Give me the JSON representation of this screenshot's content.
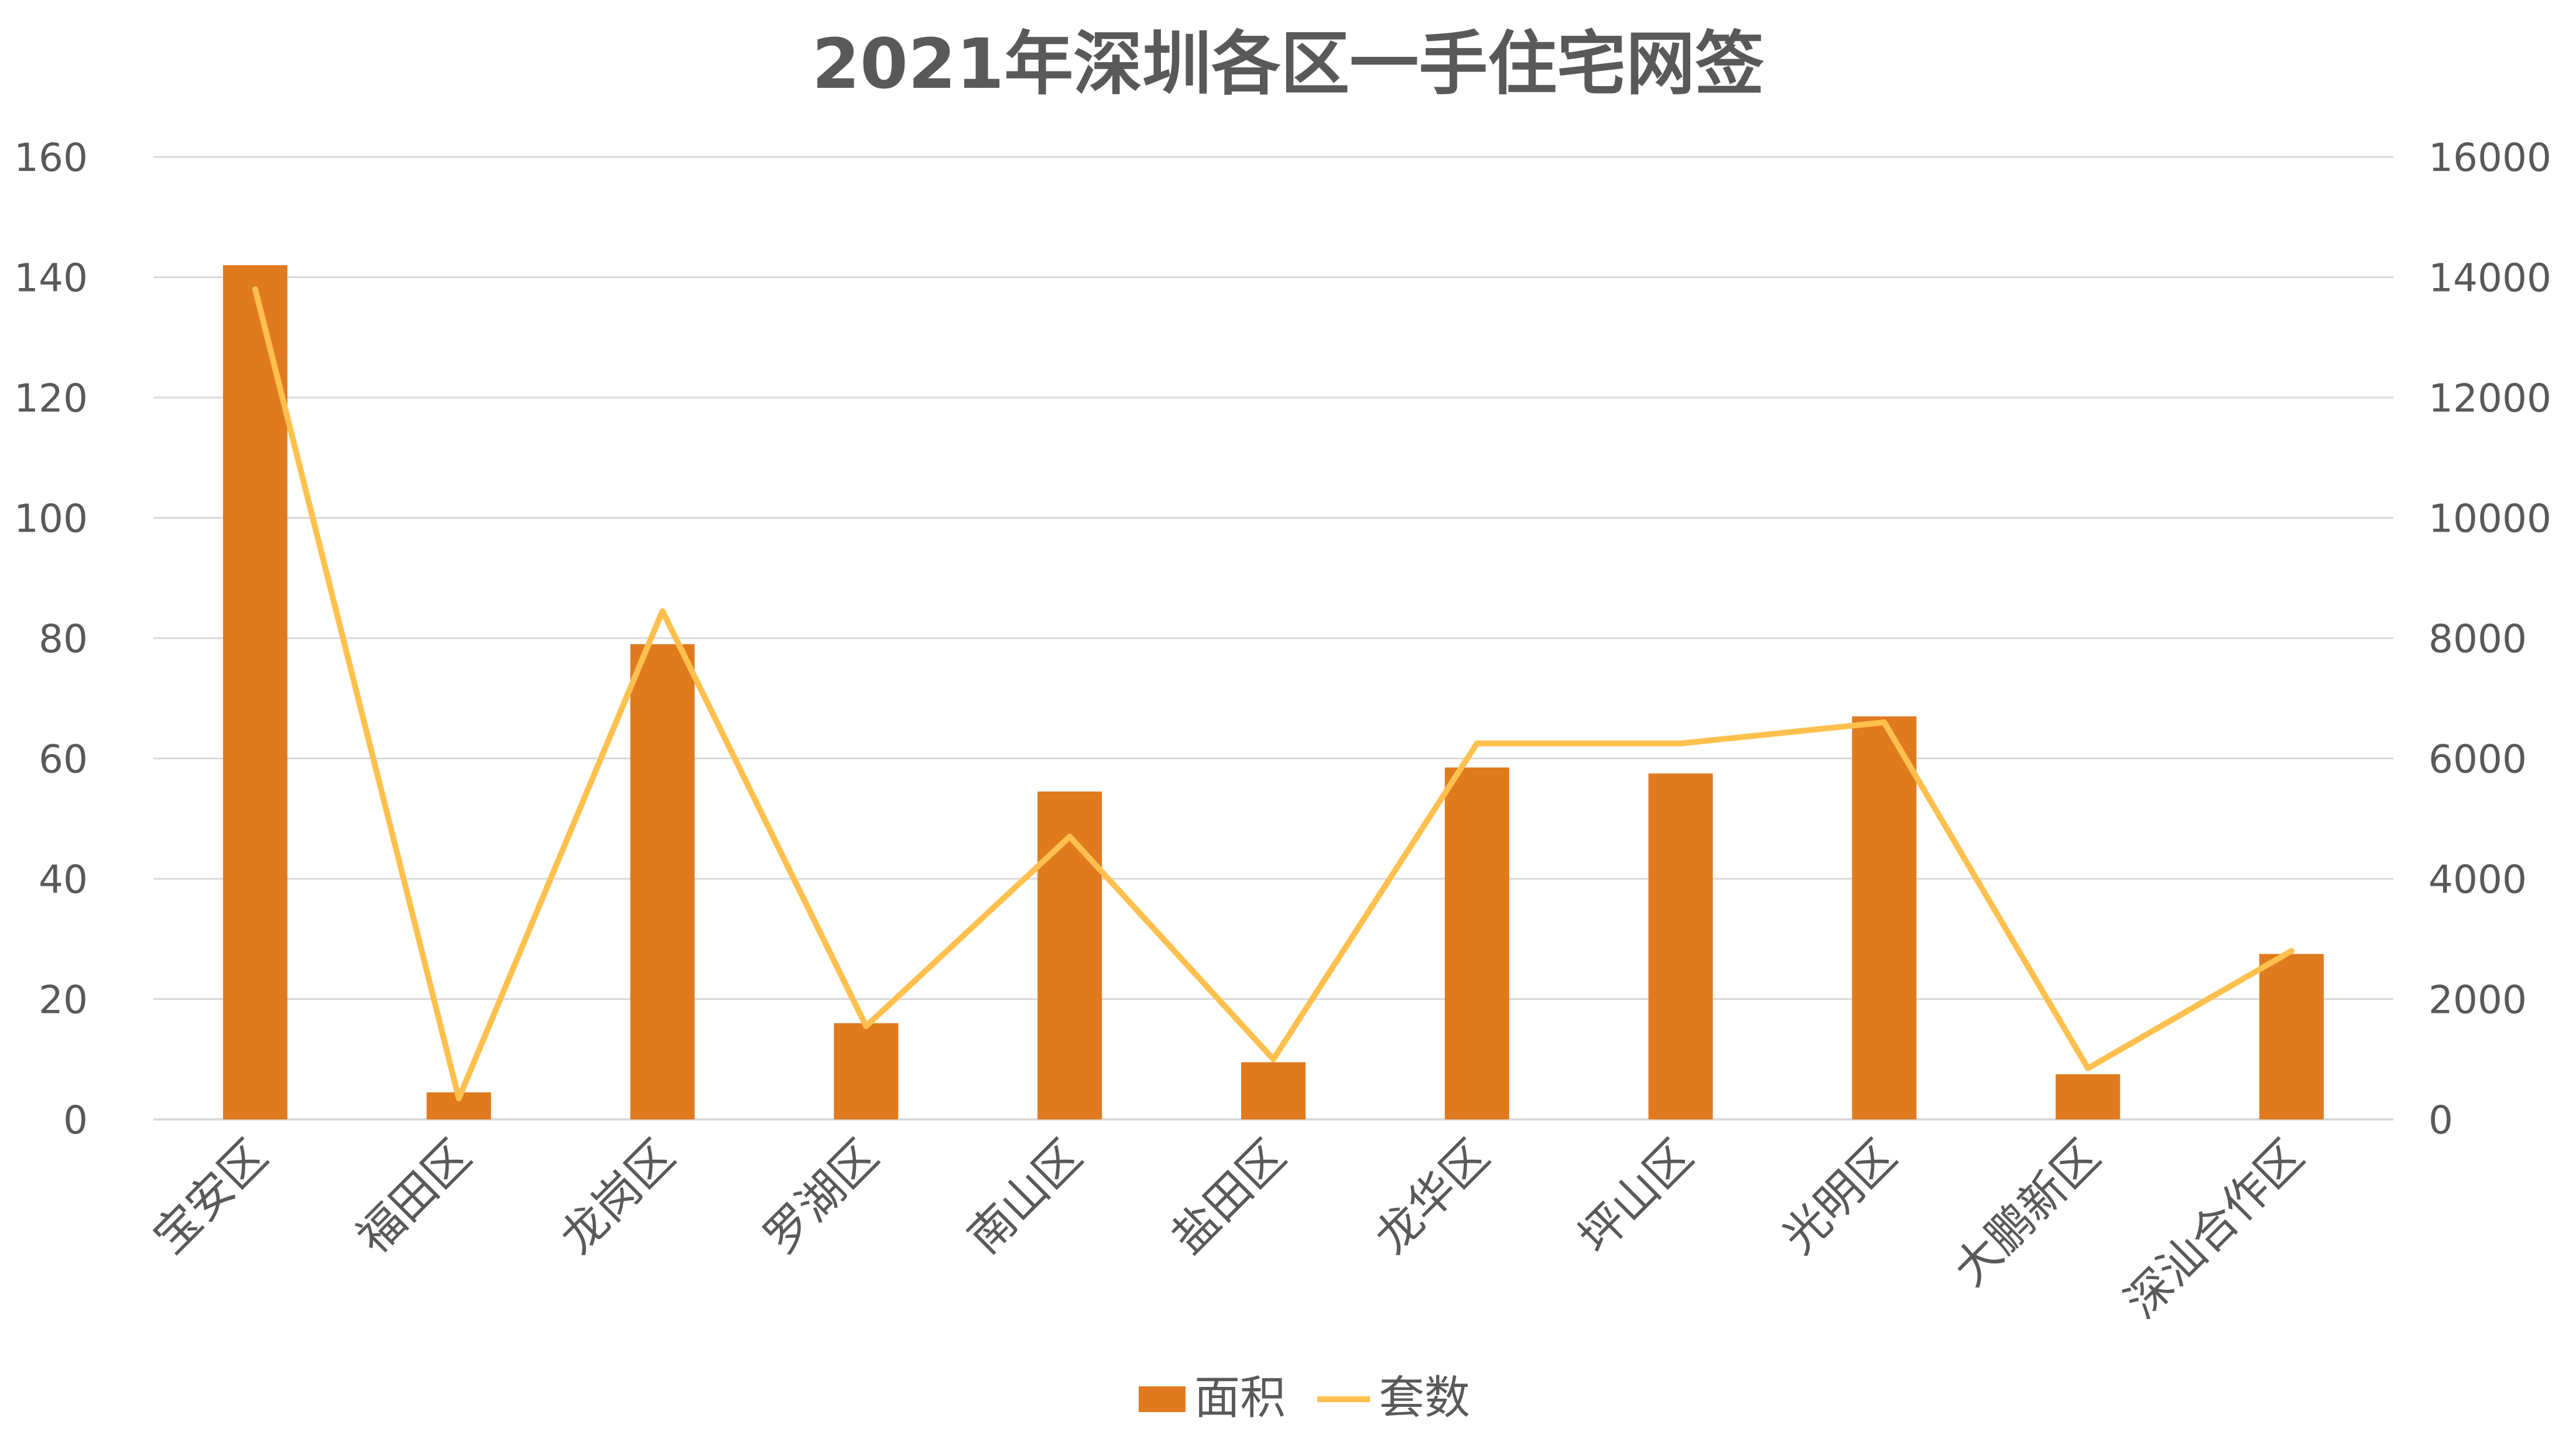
{
  "chart_data": {
    "type": "bar",
    "title": "2021年深圳各区一手住宅网签",
    "categories": [
      "宝安区",
      "福田区",
      "龙岗区",
      "罗湖区",
      "南山区",
      "盐田区",
      "龙华区",
      "坪山区",
      "光明区",
      "大鹏新区",
      "深汕合作区"
    ],
    "series": [
      {
        "name": "面积",
        "type": "bar",
        "axis": "left",
        "color": "#E07A1F",
        "values": [
          142,
          4.5,
          79,
          16,
          54.5,
          9.5,
          58.5,
          57.5,
          67,
          7.5,
          27.5
        ]
      },
      {
        "name": "套数",
        "type": "line",
        "axis": "right",
        "color": "#FFC04D",
        "values": [
          13800,
          350,
          8450,
          1550,
          4700,
          1000,
          6250,
          6250,
          6600,
          850,
          2800
        ]
      }
    ],
    "y_left": {
      "min": 0,
      "max": 160,
      "ticks": [
        "0",
        "20",
        "40",
        "60",
        "80",
        "100",
        "120",
        "140",
        "160"
      ]
    },
    "y_right": {
      "min": 0,
      "max": 16000,
      "ticks": [
        "0",
        "2000",
        "4000",
        "6000",
        "8000",
        "10000",
        "12000",
        "14000",
        "16000"
      ]
    },
    "grid": true,
    "legend": "bottom-center"
  }
}
